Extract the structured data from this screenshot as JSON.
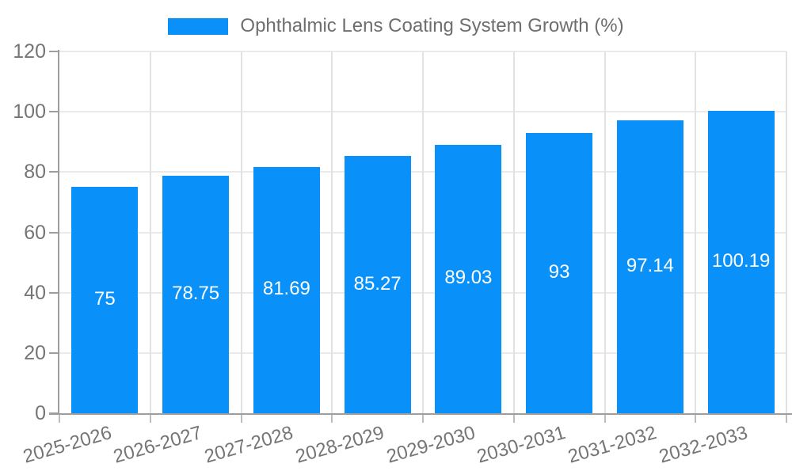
{
  "chart_data": {
    "type": "bar",
    "series_name": "Ophthalmic Lens Coating System Growth (%)",
    "categories": [
      "2025-2026",
      "2026-2027",
      "2027-2028",
      "2028-2029",
      "2029-2030",
      "2030-2031",
      "2031-2032",
      "2032-2033"
    ],
    "values": [
      75,
      78.75,
      81.69,
      85.27,
      89.03,
      93,
      97.14,
      100.19
    ],
    "value_labels": [
      "75",
      "78.75",
      "81.69",
      "85.27",
      "89.03",
      "93",
      "97.14",
      "100.19"
    ],
    "yticks": [
      0,
      20,
      40,
      60,
      80,
      100,
      120
    ],
    "ylim": [
      0,
      120
    ],
    "xlabel": "",
    "ylabel": "",
    "grid": true,
    "legend_position": "top-center",
    "x_label_rotation_deg": -16,
    "colors": {
      "bar": "#0991F9",
      "value_label": "#ffffff",
      "axis": "#9e9e9e",
      "bottom_tick": "#bdbdbd",
      "grid_h": "#eaeaea",
      "grid_v": "#e2e2e2",
      "tick_text": "#757575",
      "legend_text": "#6e6e6e",
      "background": "#ffffff"
    }
  }
}
